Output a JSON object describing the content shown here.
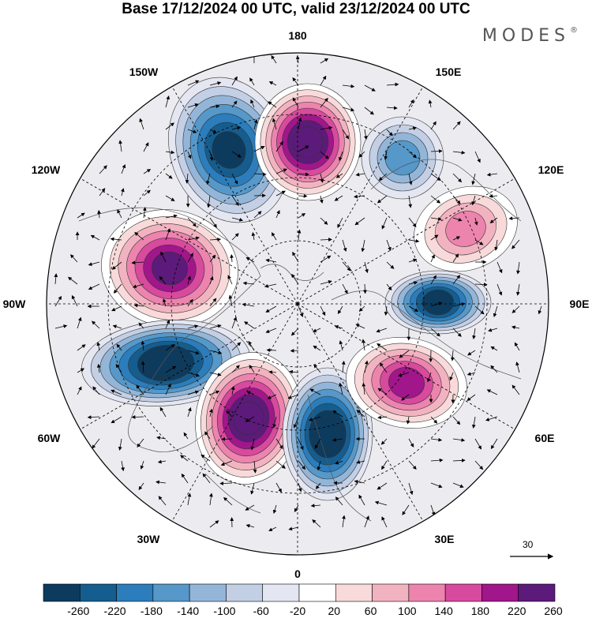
{
  "title": "Base 17/12/2024 00 UTC, valid 23/12/2024 00 UTC",
  "brand": "MODES",
  "brand_mark": "®",
  "longitude_labels": [
    {
      "id": "lon-180",
      "text": "180"
    },
    {
      "id": "lon-150e",
      "text": "150E"
    },
    {
      "id": "lon-120e",
      "text": "120E"
    },
    {
      "id": "lon-90e",
      "text": "90E"
    },
    {
      "id": "lon-60e",
      "text": "60E"
    },
    {
      "id": "lon-30e",
      "text": "30E"
    },
    {
      "id": "lon-0",
      "text": "0"
    },
    {
      "id": "lon-30w",
      "text": "30W"
    },
    {
      "id": "lon-60w",
      "text": "60W"
    },
    {
      "id": "lon-90w",
      "text": "90W"
    },
    {
      "id": "lon-120w",
      "text": "120W"
    },
    {
      "id": "lon-150w",
      "text": "150W"
    }
  ],
  "vector_reference": "30",
  "colorbar": {
    "labels": [
      "-260",
      "-220",
      "-180",
      "-140",
      "-100",
      "-60",
      "-20",
      "20",
      "60",
      "100",
      "140",
      "180",
      "220",
      "260"
    ],
    "colors": [
      "#0d3b5e",
      "#155d8e",
      "#2b7dbb",
      "#5598c9",
      "#93b6d8",
      "#c3cfe4",
      "#e4e6f1",
      "#ffffff",
      "#f8dada",
      "#f2b3c1",
      "#ec84ae",
      "#d84a9e",
      "#a1168b",
      "#5c1a7a"
    ]
  },
  "anomaly_centers": [
    {
      "name": "low-north-pacific",
      "sign": "negative",
      "magnitude": 240
    },
    {
      "name": "high-east-siberia",
      "sign": "positive",
      "magnitude": 260
    },
    {
      "name": "high-north-america",
      "sign": "positive",
      "magnitude": 220
    },
    {
      "name": "low-labrador",
      "sign": "negative",
      "magnitude": 260
    },
    {
      "name": "high-north-atlantic",
      "sign": "positive",
      "magnitude": 260
    },
    {
      "name": "low-scandinavia",
      "sign": "negative",
      "magnitude": 260
    },
    {
      "name": "high-ural",
      "sign": "positive",
      "magnitude": 200
    },
    {
      "name": "low-central-siberia",
      "sign": "negative",
      "magnitude": 220
    },
    {
      "name": "low-western-pacific",
      "sign": "negative",
      "magnitude": 100
    },
    {
      "name": "high-siberia-east",
      "sign": "positive",
      "magnitude": 100
    }
  ]
}
